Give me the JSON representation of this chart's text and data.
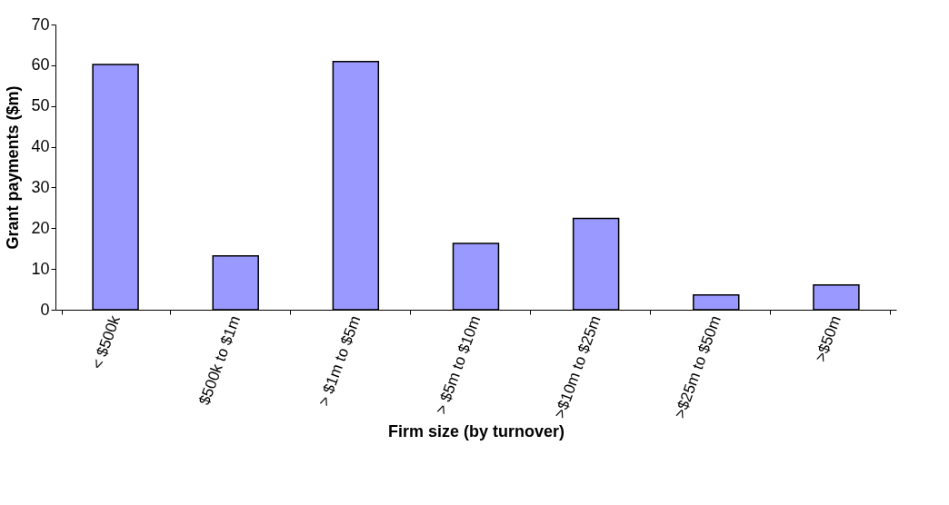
{
  "chart_data": {
    "type": "bar",
    "xlabel": "Firm size (by turnover)",
    "ylabel": "Grant payments ($m)",
    "categories": [
      "< $500k",
      "$500k to $1m",
      "> $1m to $5m",
      "> $5m to $10m",
      ">$10m to $25m",
      ">$25m to $50m",
      ">$50m"
    ],
    "values": [
      60.2,
      13.2,
      60.9,
      16.3,
      22.4,
      3.6,
      6.1
    ],
    "color": "#9999ff",
    "ylim": [
      0,
      70
    ],
    "yticks": [
      0,
      10,
      20,
      30,
      40,
      50,
      60,
      70
    ],
    "grid": false
  }
}
